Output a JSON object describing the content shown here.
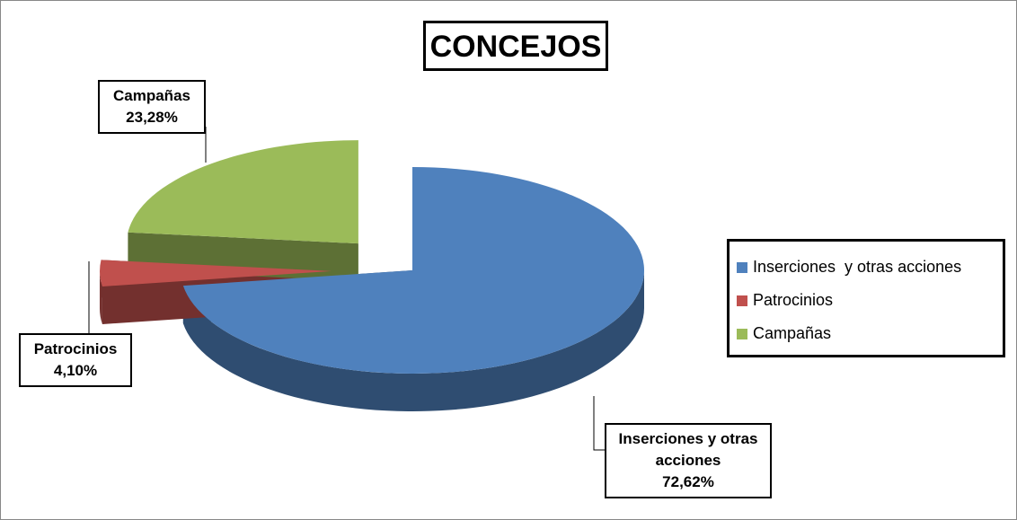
{
  "chart_data": {
    "type": "pie",
    "title": "CONCEJOS",
    "categories": [
      "Inserciones  y otras acciones",
      "Patrocinios",
      "Campañas"
    ],
    "values": [
      72.62,
      4.1,
      23.28
    ],
    "value_labels": [
      "72,62%",
      "4,10%",
      "23,28%"
    ],
    "colors": [
      "#4f81bd",
      "#c0504d",
      "#9bbb59"
    ],
    "legend": "right"
  }
}
